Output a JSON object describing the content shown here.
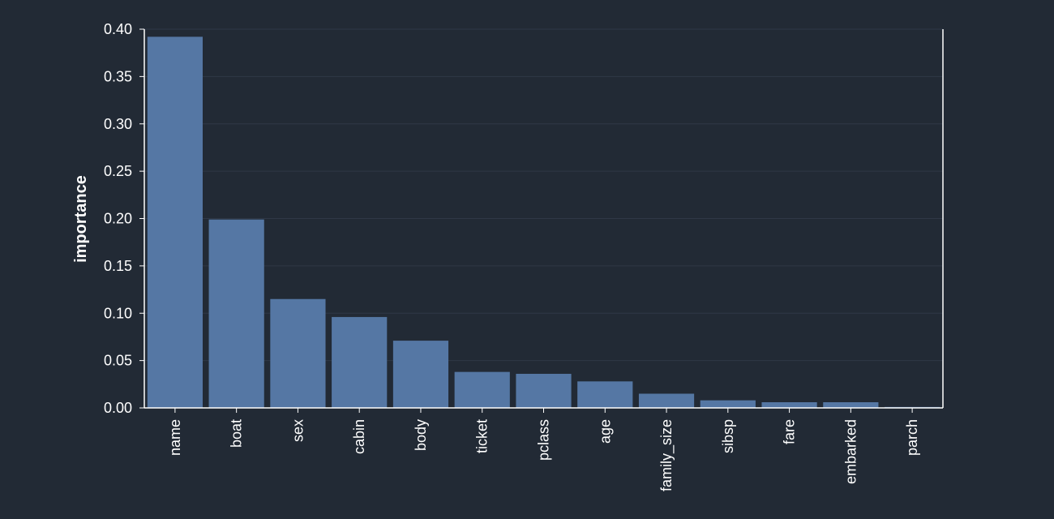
{
  "chart_data": {
    "type": "bar",
    "categories": [
      "name",
      "boat",
      "sex",
      "cabin",
      "body",
      "ticket",
      "pclass",
      "age",
      "family_size",
      "sibsp",
      "fare",
      "embarked",
      "parch"
    ],
    "values": [
      0.392,
      0.199,
      0.115,
      0.096,
      0.071,
      0.038,
      0.036,
      0.028,
      0.015,
      0.008,
      0.006,
      0.006,
      0.001
    ],
    "ylabel": "importance",
    "xlabel": "",
    "ylim": [
      0,
      0.4
    ],
    "yticks": [
      "0.00",
      "0.05",
      "0.10",
      "0.15",
      "0.20",
      "0.25",
      "0.30",
      "0.35",
      "0.40"
    ],
    "grid": true,
    "colors": {
      "background": "#222a35",
      "bar": "#5577a4",
      "axis": "#ffffff",
      "grid": "#2f3846",
      "text": "#ffffff"
    }
  }
}
